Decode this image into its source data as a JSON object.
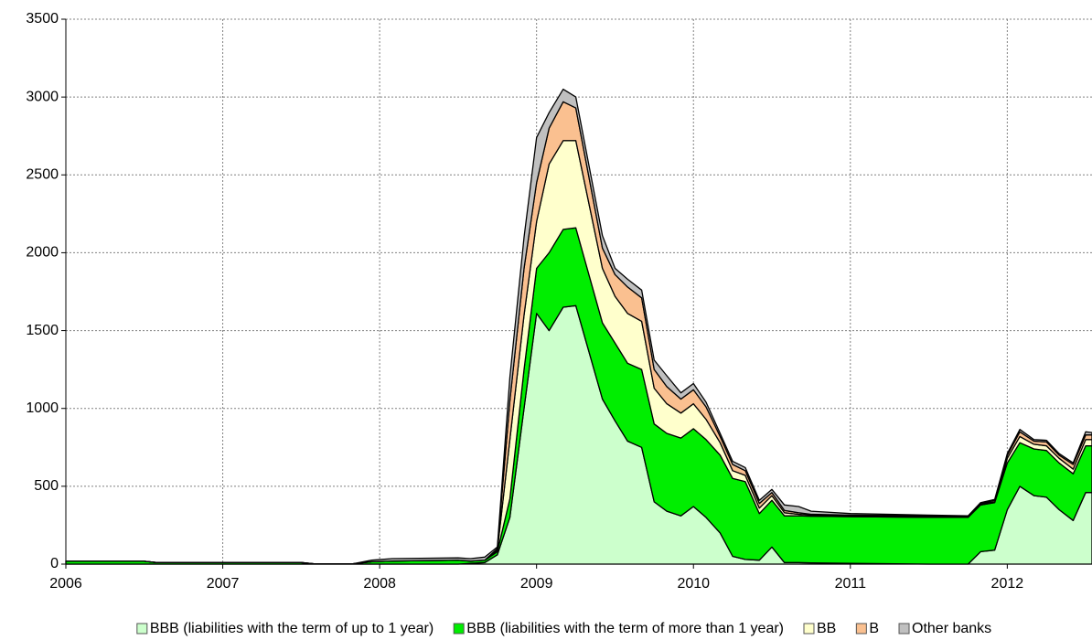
{
  "chart_data": {
    "type": "stacked-area",
    "x": [
      2006.0,
      2006.5,
      2006.58,
      2007.5,
      2007.58,
      2007.83,
      2007.95,
      2008.08,
      2008.5,
      2008.58,
      2008.67,
      2008.75,
      2008.83,
      2008.92,
      2009.0,
      2009.08,
      2009.17,
      2009.25,
      2009.42,
      2009.5,
      2009.58,
      2009.67,
      2009.75,
      2009.83,
      2009.92,
      2010.0,
      2010.08,
      2010.17,
      2010.25,
      2010.33,
      2010.42,
      2010.5,
      2010.58,
      2010.67,
      2010.75,
      2011.0,
      2011.5,
      2011.75,
      2011.83,
      2011.92,
      2012.0,
      2012.08,
      2012.17,
      2012.25,
      2012.33,
      2012.42,
      2012.5,
      2012.54
    ],
    "series": [
      {
        "name": "BBB (liabilities with the term of up to 1 year)",
        "color": "#ccffcc",
        "values": [
          0,
          0,
          0,
          0,
          0,
          0,
          0,
          0,
          0,
          5,
          10,
          60,
          300,
          1000,
          1610,
          1500,
          1650,
          1660,
          1060,
          920,
          790,
          750,
          400,
          340,
          310,
          370,
          300,
          200,
          50,
          30,
          25,
          110,
          10,
          10,
          8,
          5,
          0,
          0,
          80,
          90,
          350,
          500,
          440,
          430,
          350,
          280,
          460,
          460
        ]
      },
      {
        "name": "BBB (liabilities with the term of more than 1 year)",
        "color": "#00ee00",
        "values": [
          18,
          18,
          10,
          10,
          2,
          2,
          15,
          20,
          25,
          15,
          15,
          20,
          120,
          250,
          290,
          500,
          500,
          500,
          490,
          500,
          500,
          500,
          500,
          500,
          500,
          500,
          500,
          500,
          500,
          500,
          300,
          300,
          300,
          300,
          300,
          300,
          300,
          300,
          300,
          305,
          300,
          280,
          300,
          300,
          300,
          300,
          300,
          300
        ]
      },
      {
        "name": "BB",
        "color": "#ffffcc",
        "values": [
          0,
          0,
          0,
          0,
          0,
          0,
          0,
          0,
          0,
          0,
          0,
          10,
          380,
          350,
          300,
          570,
          570,
          560,
          350,
          300,
          320,
          310,
          230,
          190,
          160,
          160,
          130,
          80,
          50,
          40,
          35,
          30,
          20,
          10,
          7,
          5,
          5,
          3,
          5,
          5,
          30,
          40,
          30,
          30,
          30,
          30,
          40,
          40
        ]
      },
      {
        "name": "B",
        "color": "#fac090",
        "values": [
          0,
          0,
          0,
          0,
          0,
          0,
          0,
          0,
          0,
          0,
          0,
          10,
          250,
          300,
          250,
          230,
          250,
          210,
          130,
          140,
          170,
          150,
          120,
          110,
          90,
          90,
          80,
          40,
          40,
          30,
          30,
          20,
          15,
          10,
          5,
          5,
          5,
          3,
          5,
          10,
          20,
          30,
          20,
          25,
          20,
          30,
          30,
          30
        ]
      },
      {
        "name": "Other banks",
        "color": "#c0c0c0",
        "values": [
          0,
          0,
          0,
          0,
          0,
          0,
          10,
          15,
          15,
          15,
          20,
          10,
          150,
          200,
          290,
          100,
          80,
          70,
          80,
          40,
          50,
          50,
          60,
          70,
          40,
          40,
          30,
          20,
          20,
          20,
          20,
          20,
          35,
          40,
          20,
          10,
          5,
          4,
          5,
          5,
          10,
          15,
          10,
          10,
          10,
          10,
          20,
          15
        ]
      }
    ],
    "xlim": [
      2006,
      2012.54
    ],
    "xticks": [
      2006,
      2007,
      2008,
      2009,
      2010,
      2011,
      2012
    ],
    "ylim": [
      0,
      3500
    ],
    "yticks": [
      0,
      500,
      1000,
      1500,
      2000,
      2500,
      3000,
      3500
    ],
    "grid": true,
    "legend": "bottom"
  }
}
